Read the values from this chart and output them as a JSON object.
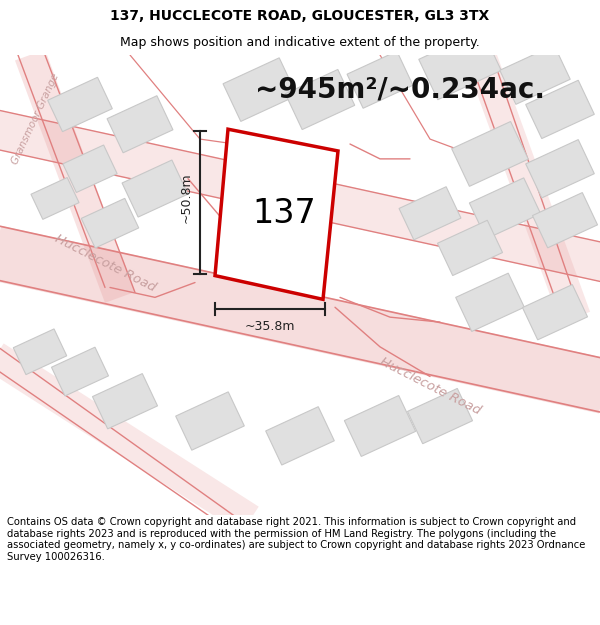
{
  "title": "137, HUCCLECOTE ROAD, GLOUCESTER, GL3 3TX",
  "subtitle": "Map shows position and indicative extent of the property.",
  "area_text": "~945m²/~0.234ac.",
  "label_137": "137",
  "dim_vertical": "~50.8m",
  "dim_horizontal": "~35.8m",
  "footer": "Contains OS data © Crown copyright and database right 2021. This information is subject to Crown copyright and database rights 2023 and is reproduced with the permission of HM Land Registry. The polygons (including the associated geometry, namely x, y co-ordinates) are subject to Crown copyright and database rights 2023 Ordnance Survey 100026316.",
  "bg_color": "#ffffff",
  "map_bg": "#f8f8f8",
  "road_color": "#e8a0a0",
  "road_outline_color": "#e08080",
  "building_fill": "#e0e0e0",
  "building_edge": "#c8c8c8",
  "property_fill": "#ffffff",
  "property_edge": "#cc0000",
  "road_label_color": "#c8a0a0",
  "dim_color": "#222222",
  "area_color": "#111111",
  "title_fontsize": 10,
  "subtitle_fontsize": 9,
  "area_fontsize": 20,
  "label_fontsize": 24,
  "dim_fontsize": 9,
  "footer_fontsize": 7.2,
  "road_label_fontsize": 9.5
}
